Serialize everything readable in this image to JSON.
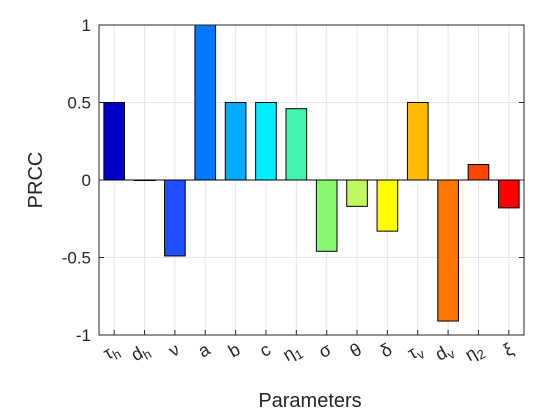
{
  "chart_data": {
    "type": "bar",
    "xlabel": "Parameters",
    "ylabel": "PRCC",
    "ylim": [
      -1,
      1
    ],
    "yticks": [
      -1,
      -0.5,
      0,
      0.5,
      1
    ],
    "ytick_labels": [
      "-1",
      "-0.5",
      "0",
      "0.5",
      "1"
    ],
    "grid": true,
    "categories": [
      {
        "label": "τ",
        "sub": "h"
      },
      {
        "label": "d",
        "sub": "h"
      },
      {
        "label": "ν",
        "sub": ""
      },
      {
        "label": "a",
        "sub": ""
      },
      {
        "label": "b",
        "sub": ""
      },
      {
        "label": "c",
        "sub": ""
      },
      {
        "label": "η",
        "sub": "1"
      },
      {
        "label": "σ",
        "sub": ""
      },
      {
        "label": "θ",
        "sub": ""
      },
      {
        "label": "δ",
        "sub": ""
      },
      {
        "label": "τ",
        "sub": "v"
      },
      {
        "label": "d",
        "sub": "v"
      },
      {
        "label": "η",
        "sub": "2"
      },
      {
        "label": "ξ",
        "sub": ""
      }
    ],
    "values": [
      0.5,
      0.0,
      -0.49,
      1.0,
      0.5,
      0.5,
      0.46,
      -0.46,
      -0.17,
      -0.33,
      0.5,
      -0.91,
      0.1,
      -0.18
    ],
    "colors": [
      "#0000c8",
      "#0016ff",
      "#1f4fff",
      "#0078ff",
      "#00aaff",
      "#00eeff",
      "#44f5b0",
      "#88f870",
      "#c0f860",
      "#ffff00",
      "#ffbb00",
      "#ff7700",
      "#ff4400",
      "#ff0000"
    ]
  }
}
